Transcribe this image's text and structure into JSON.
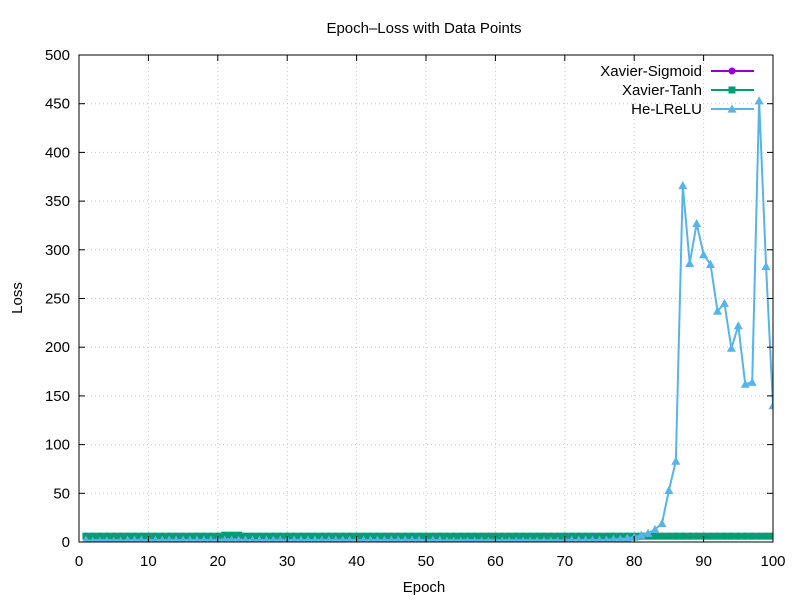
{
  "chart_data": {
    "type": "line",
    "title": "Epoch–Loss with Data Points",
    "xlabel": "Epoch",
    "ylabel": "Loss",
    "xlim": [
      0,
      100
    ],
    "ylim": [
      0,
      500
    ],
    "xticks": [
      0,
      10,
      20,
      30,
      40,
      50,
      60,
      70,
      80,
      90,
      100
    ],
    "yticks": [
      0,
      50,
      100,
      150,
      200,
      250,
      300,
      350,
      400,
      450,
      500
    ],
    "grid": true,
    "legend_position": "top-right",
    "x": [
      1,
      2,
      3,
      4,
      5,
      6,
      7,
      8,
      9,
      10,
      11,
      12,
      13,
      14,
      15,
      16,
      17,
      18,
      19,
      20,
      21,
      22,
      23,
      24,
      25,
      26,
      27,
      28,
      29,
      30,
      31,
      32,
      33,
      34,
      35,
      36,
      37,
      38,
      39,
      40,
      41,
      42,
      43,
      44,
      45,
      46,
      47,
      48,
      49,
      50,
      51,
      52,
      53,
      54,
      55,
      56,
      57,
      58,
      59,
      60,
      61,
      62,
      63,
      64,
      65,
      66,
      67,
      68,
      69,
      70,
      71,
      72,
      73,
      74,
      75,
      76,
      77,
      78,
      79,
      80,
      81,
      82,
      83,
      84,
      85,
      86,
      87,
      88,
      89,
      90,
      91,
      92,
      93,
      94,
      95,
      96,
      97,
      98,
      99,
      100
    ],
    "series": [
      {
        "name": "Xavier-Sigmoid",
        "color": "#9400d3",
        "marker": "circle",
        "values": [
          6,
          6,
          6,
          6,
          6,
          6,
          6,
          6,
          6,
          6,
          6,
          6,
          6,
          6,
          6,
          6,
          6,
          6,
          6,
          6,
          6,
          6,
          6,
          6,
          6,
          6,
          6,
          6,
          6,
          6,
          6,
          6,
          6,
          6,
          6,
          6,
          6,
          6,
          6,
          6,
          6,
          6,
          6,
          6,
          6,
          6,
          6,
          6,
          6,
          6,
          6,
          6,
          6,
          6,
          6,
          6,
          6,
          6,
          6,
          6,
          6,
          6,
          6,
          6,
          6,
          6,
          6,
          6,
          6,
          6,
          6,
          6,
          6,
          6,
          6,
          6,
          6,
          6,
          6,
          6,
          6,
          6,
          6,
          6,
          6,
          6,
          6,
          6,
          6,
          6,
          6,
          6,
          6,
          6,
          6,
          6,
          6,
          6,
          6,
          6
        ]
      },
      {
        "name": "Xavier-Tanh",
        "color": "#009e73",
        "marker": "square",
        "values": [
          6,
          6,
          6,
          6,
          6,
          6,
          6,
          6,
          6,
          6,
          6,
          6,
          6,
          6,
          6,
          6,
          6,
          6,
          6,
          6,
          7,
          7,
          7,
          6,
          6,
          6,
          6,
          6,
          6,
          6,
          6,
          6,
          6,
          6,
          6,
          6,
          6,
          6,
          6,
          6,
          6,
          6,
          6,
          6,
          6,
          6,
          6,
          6,
          6,
          6,
          6,
          6,
          6,
          6,
          6,
          6,
          6,
          6,
          6,
          6,
          6,
          6,
          6,
          6,
          6,
          6,
          6,
          6,
          6,
          6,
          6,
          6,
          6,
          6,
          6,
          6,
          6,
          6,
          6,
          6,
          6,
          6,
          6,
          6,
          6,
          6,
          6,
          6,
          6,
          6,
          6,
          6,
          6,
          6,
          6,
          6,
          6,
          6,
          6,
          6
        ]
      },
      {
        "name": "He-LReLU",
        "color": "#56b4e9",
        "marker": "triangle",
        "values": [
          2,
          1,
          1,
          1,
          1,
          1,
          2,
          2,
          2,
          2,
          2,
          2,
          2,
          2,
          2,
          2,
          2,
          2,
          2,
          2,
          2,
          2,
          2,
          2,
          2,
          2,
          2,
          2,
          2,
          2,
          2,
          2,
          2,
          2,
          2,
          2,
          2,
          2,
          2,
          2,
          2,
          2,
          2,
          2,
          2,
          2,
          2,
          2,
          2,
          2,
          2,
          2,
          1,
          1,
          1,
          1,
          1,
          1,
          1,
          1,
          1,
          1,
          1,
          1,
          1,
          1,
          1,
          1,
          1,
          2,
          2,
          2,
          2,
          2,
          2,
          2,
          3,
          3,
          4,
          5,
          7,
          9,
          13,
          19,
          53,
          83,
          366,
          286,
          327,
          295,
          285,
          237,
          245,
          199,
          222,
          162,
          164,
          453,
          283,
          140
        ]
      }
    ]
  }
}
